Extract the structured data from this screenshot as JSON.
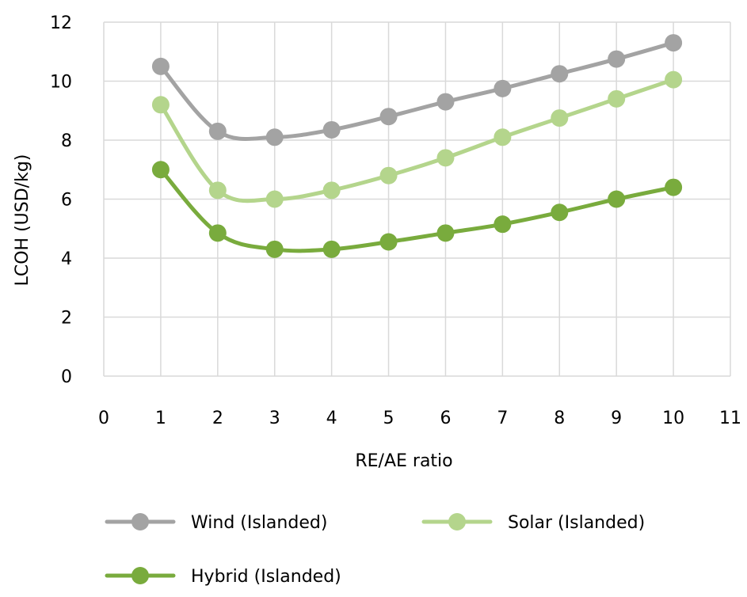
{
  "chart_data": {
    "type": "line",
    "title": "",
    "xlabel": "RE/AE ratio",
    "ylabel": "LCOH (USD/kg)",
    "xlim": [
      0,
      11
    ],
    "ylim": [
      0,
      12
    ],
    "x_ticks": [
      "0",
      "1",
      "2",
      "3",
      "4",
      "5",
      "6",
      "7",
      "8",
      "9",
      "10",
      "11"
    ],
    "y_ticks": [
      "0",
      "2",
      "4",
      "6",
      "8",
      "10",
      "12"
    ],
    "grid": true,
    "smooth": true,
    "legend_position": "bottom",
    "x": [
      1,
      2,
      3,
      4,
      5,
      6,
      7,
      8,
      9,
      10
    ],
    "series": [
      {
        "name": "Wind (Islanded)",
        "color": "#a3a3a3",
        "values": [
          10.5,
          8.3,
          8.1,
          8.35,
          8.8,
          9.3,
          9.75,
          10.25,
          10.75,
          11.3
        ]
      },
      {
        "name": "Solar (Islanded)",
        "color": "#b4d58c",
        "values": [
          9.2,
          6.3,
          6.0,
          6.3,
          6.8,
          7.4,
          8.1,
          8.75,
          9.4,
          10.05
        ]
      },
      {
        "name": "Hybrid (Islanded)",
        "color": "#79ab3d",
        "values": [
          7.0,
          4.85,
          4.3,
          4.3,
          4.55,
          4.85,
          5.15,
          5.55,
          6.0,
          6.4
        ]
      }
    ]
  }
}
